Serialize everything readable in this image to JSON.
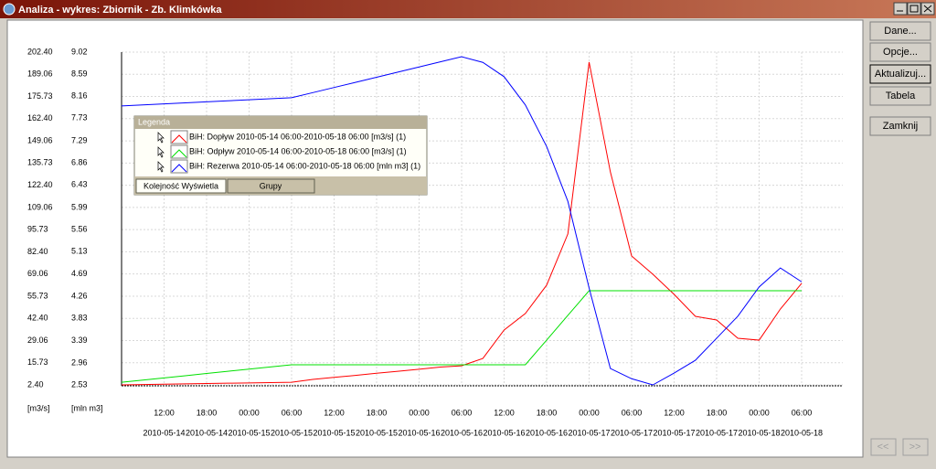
{
  "window": {
    "title": "Analiza - wykres: Zbiornik - Zb. Klimkówka",
    "buttons": [
      "Dane...",
      "Opcje...",
      "Aktualizuj...",
      "Tabela",
      "Zamknij"
    ],
    "nav_buttons": [
      "<<",
      ">>"
    ]
  },
  "legend": {
    "title": "Legenda",
    "tabs": [
      "Kolejność Wyświetla",
      "Grupy"
    ]
  },
  "chart_data": {
    "type": "line",
    "y_label": "[m3/s]",
    "y2_label": "[mln m3]",
    "grid": true,
    "x": [
      "2010-05-14 06:00",
      "2010-05-14 09:00",
      "2010-05-14 12:00",
      "2010-05-14 15:00",
      "2010-05-14 18:00",
      "2010-05-14 21:00",
      "2010-05-15 00:00",
      "2010-05-15 03:00",
      "2010-05-15 06:00",
      "2010-05-15 09:00",
      "2010-05-15 12:00",
      "2010-05-15 15:00",
      "2010-05-15 18:00",
      "2010-05-15 21:00",
      "2010-05-16 00:00",
      "2010-05-16 03:00",
      "2010-05-16 06:00",
      "2010-05-16 09:00",
      "2010-05-16 12:00",
      "2010-05-16 15:00",
      "2010-05-16 18:00",
      "2010-05-16 21:00",
      "2010-05-17 00:00",
      "2010-05-17 03:00",
      "2010-05-17 06:00",
      "2010-05-17 09:00",
      "2010-05-17 12:00",
      "2010-05-17 15:00",
      "2010-05-17 18:00",
      "2010-05-17 21:00",
      "2010-05-18 00:00",
      "2010-05-18 03:00",
      "2010-05-18 06:00"
    ],
    "xticks": [
      {
        "value": "2010-05-14 12:00",
        "time": "12:00",
        "date": "2010-05-14"
      },
      {
        "value": "2010-05-14 18:00",
        "time": "18:00",
        "date": "2010-05-14"
      },
      {
        "value": "2010-05-15 00:00",
        "time": "00:00",
        "date": "2010-05-15"
      },
      {
        "value": "2010-05-15 06:00",
        "time": "06:00",
        "date": "2010-05-15"
      },
      {
        "value": "2010-05-15 12:00",
        "time": "12:00",
        "date": "2010-05-15"
      },
      {
        "value": "2010-05-15 18:00",
        "time": "18:00",
        "date": "2010-05-15"
      },
      {
        "value": "2010-05-16 00:00",
        "time": "00:00",
        "date": "2010-05-16"
      },
      {
        "value": "2010-05-16 06:00",
        "time": "06:00",
        "date": "2010-05-16"
      },
      {
        "value": "2010-05-16 12:00",
        "time": "12:00",
        "date": "2010-05-16"
      },
      {
        "value": "2010-05-16 18:00",
        "time": "18:00",
        "date": "2010-05-16"
      },
      {
        "value": "2010-05-17 00:00",
        "time": "00:00",
        "date": "2010-05-17"
      },
      {
        "value": "2010-05-17 06:00",
        "time": "06:00",
        "date": "2010-05-17"
      },
      {
        "value": "2010-05-17 12:00",
        "time": "12:00",
        "date": "2010-05-17"
      },
      {
        "value": "2010-05-17 18:00",
        "time": "18:00",
        "date": "2010-05-17"
      },
      {
        "value": "2010-05-18 00:00",
        "time": "00:00",
        "date": "2010-05-18"
      },
      {
        "value": "2010-05-18 06:00",
        "time": "06:00",
        "date": "2010-05-18"
      }
    ],
    "ylim": [
      2.4,
      202.4
    ],
    "yticks": [
      {
        "value": 2.4,
        "label": "2.40"
      },
      15.73,
      29.06,
      {
        "value": 42.4,
        "label": "42.40"
      },
      55.73,
      69.06,
      {
        "value": 82.4,
        "label": "82.40"
      },
      95.73,
      109.06,
      {
        "value": 122.4,
        "label": "122.40"
      },
      135.73,
      149.06,
      {
        "value": 162.4,
        "label": "162.40"
      },
      175.73,
      189.06,
      {
        "value": 202.4,
        "label": "202.40"
      }
    ],
    "y2lim": [
      2.53,
      9.02
    ],
    "y2ticks": [
      2.53,
      2.96,
      3.39,
      3.83,
      4.26,
      4.69,
      5.13,
      5.56,
      5.99,
      6.43,
      6.86,
      7.29,
      7.73,
      8.16,
      8.59,
      9.02
    ],
    "series": [
      {
        "name": "BiH: Dopływ 2010-05-14 06:00-2010-05-18 06:00 [m3/s] (1)",
        "color": "#ff0000",
        "values": [
          2.4,
          2.6,
          2.8,
          3.0,
          3.2,
          3.4,
          3.6,
          3.8,
          4.0,
          5.7,
          6.9,
          8.1,
          9.4,
          10.6,
          11.8,
          13.1,
          13.9,
          18.3,
          35.4,
          45.3,
          62.3,
          93.1,
          196.4,
          130.4,
          79.9,
          68.9,
          56.8,
          43.6,
          41.4,
          30.4,
          29.3,
          48.0,
          63.4
        ]
      },
      {
        "name": "BiH: Odpływ 2010-05-14 06:00-2010-05-18 06:00 [m3/s] (1)",
        "color": "#00e000",
        "values": [
          4.0,
          5.3,
          6.6,
          7.9,
          9.3,
          10.6,
          11.9,
          13.2,
          14.5,
          14.5,
          14.5,
          14.5,
          14.5,
          14.5,
          14.5,
          14.5,
          14.5,
          14.5,
          14.5,
          14.5,
          29.3,
          44.2,
          59.0,
          59.0,
          59.0,
          59.0,
          59.0,
          59.0,
          59.0,
          59.0,
          59.0,
          59.0,
          59.0
        ]
      },
      {
        "name": "BiH: Rezerwa 2010-05-14 06:00-2010-05-18 06:00 [mln m3] (1)",
        "color": "#0000ff",
        "axis": "y2",
        "values": [
          7.97,
          7.99,
          8.01,
          8.03,
          8.05,
          8.07,
          8.09,
          8.11,
          8.13,
          8.23,
          8.33,
          8.43,
          8.53,
          8.63,
          8.73,
          8.83,
          8.93,
          8.82,
          8.54,
          7.99,
          7.18,
          6.11,
          4.42,
          2.85,
          2.65,
          2.53,
          2.76,
          3.01,
          3.44,
          3.87,
          4.44,
          4.81,
          4.54
        ]
      }
    ]
  }
}
